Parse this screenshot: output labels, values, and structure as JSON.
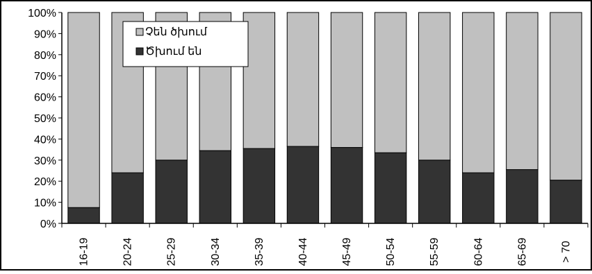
{
  "chart_data": {
    "type": "bar",
    "stacked_percent": true,
    "categories": [
      "16-19",
      "20-24",
      "25-29",
      "30-34",
      "35-39",
      "40-44",
      "45-49",
      "50-54",
      "55-59",
      "60-64",
      "65-69",
      "> 70"
    ],
    "series": [
      {
        "name": "Ծխում են",
        "color": "#333333",
        "values": [
          7.5,
          24,
          30,
          34.5,
          35.5,
          36.5,
          36,
          33.5,
          30,
          24,
          25.5,
          20.5
        ]
      },
      {
        "name": "Չեն ծխում",
        "color": "#c0c0c0",
        "values": [
          92.5,
          76,
          70,
          65.5,
          64.5,
          63.5,
          64,
          66.5,
          70,
          76,
          74.5,
          79.5
        ]
      }
    ],
    "y_ticks": [
      "0%",
      "10%",
      "20%",
      "30%",
      "40%",
      "50%",
      "60%",
      "70%",
      "80%",
      "90%",
      "100%"
    ],
    "ylim": [
      0,
      100
    ],
    "grid": false,
    "legend": {
      "position": "top-left",
      "items": [
        "Չեն ծխում",
        "Ծխում են"
      ]
    }
  }
}
